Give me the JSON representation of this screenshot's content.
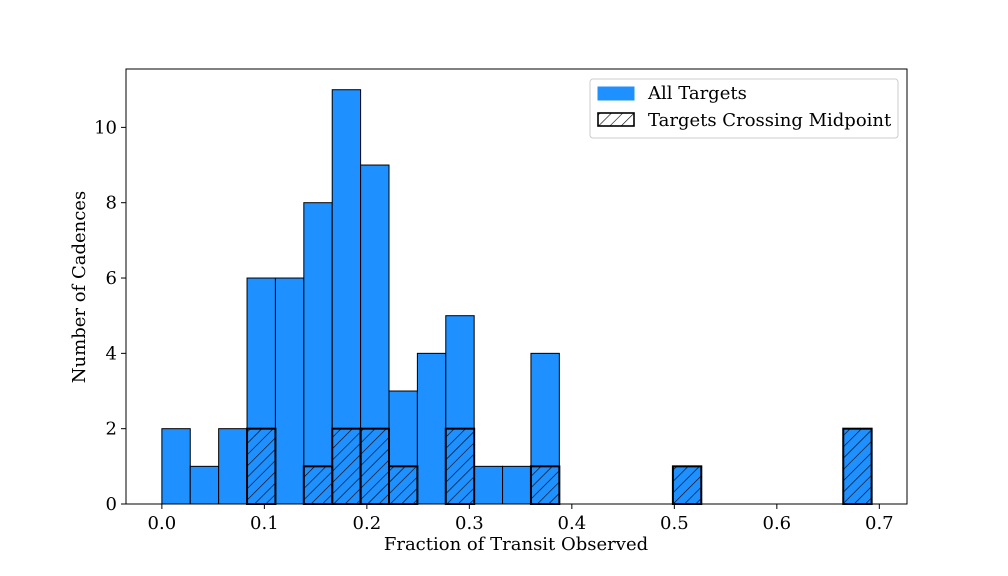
{
  "chart_data": {
    "type": "bar",
    "title": "",
    "xlabel": "Fraction of Transit Observed",
    "ylabel": "Number of Cadences",
    "xlim": [
      -0.035,
      0.727
    ],
    "ylim": [
      0,
      11.55
    ],
    "x_ticks": [
      "0.0",
      "0.1",
      "0.2",
      "0.3",
      "0.4",
      "0.5",
      "0.6",
      "0.7"
    ],
    "y_ticks": [
      "0",
      "2",
      "4",
      "6",
      "8",
      "10"
    ],
    "bin_width": 0.0277,
    "bins_start": 0.0,
    "grid": false,
    "legend_position": "top-right",
    "series": [
      {
        "name": "All Targets",
        "color": "#1e90ff",
        "hatch": false,
        "values": [
          2,
          1,
          2,
          6,
          6,
          8,
          11,
          9,
          3,
          4,
          5,
          1,
          1,
          4,
          0,
          0,
          0,
          0,
          1,
          0,
          0,
          0,
          0,
          0,
          2
        ]
      },
      {
        "name": "Targets Crossing Midpoint",
        "color": "none",
        "hatch": true,
        "values": [
          0,
          0,
          0,
          2,
          0,
          1,
          2,
          2,
          1,
          0,
          2,
          0,
          0,
          1,
          0,
          0,
          0,
          0,
          1,
          0,
          0,
          0,
          0,
          0,
          2
        ]
      }
    ]
  }
}
